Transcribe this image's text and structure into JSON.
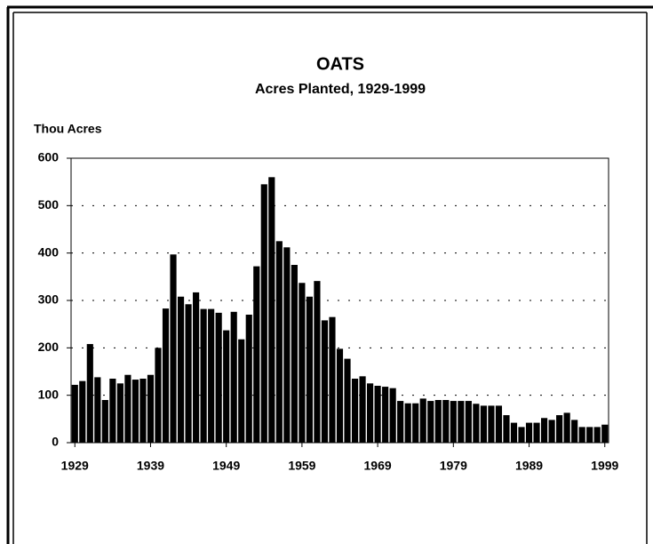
{
  "chart_data": {
    "type": "bar",
    "title": "OATS",
    "subtitle": "Acres Planted, 1929-1999",
    "y_label": "Thou Acres",
    "categories": [
      "1929",
      null,
      null,
      null,
      null,
      null,
      null,
      null,
      null,
      null,
      "1939",
      null,
      null,
      null,
      null,
      null,
      null,
      null,
      null,
      null,
      "1949",
      null,
      null,
      null,
      null,
      null,
      null,
      null,
      null,
      null,
      "1959",
      null,
      null,
      null,
      null,
      null,
      null,
      null,
      null,
      null,
      "1969",
      null,
      null,
      null,
      null,
      null,
      null,
      null,
      null,
      null,
      "1979",
      null,
      null,
      null,
      null,
      null,
      null,
      null,
      null,
      null,
      "1989",
      null,
      null,
      null,
      null,
      null,
      null,
      null,
      null,
      null,
      "1999"
    ],
    "values": [
      122,
      130,
      208,
      138,
      90,
      135,
      125,
      143,
      133,
      135,
      143,
      200,
      283,
      397,
      308,
      292,
      317,
      282,
      282,
      274,
      237,
      276,
      218,
      270,
      372,
      545,
      560,
      425,
      412,
      375,
      337,
      308,
      341,
      258,
      265,
      198,
      177,
      135,
      140,
      125,
      120,
      118,
      115,
      88,
      83,
      83,
      93,
      88,
      90,
      90,
      88,
      88,
      88,
      82,
      78,
      78,
      78,
      58,
      42,
      33,
      42,
      42,
      52,
      48,
      58,
      63,
      48,
      33,
      33,
      33,
      38
    ],
    "color": "#000000",
    "ylim": [
      0,
      600
    ],
    "yticks": [
      0,
      100,
      200,
      300,
      400,
      500,
      600
    ],
    "grid": true
  }
}
